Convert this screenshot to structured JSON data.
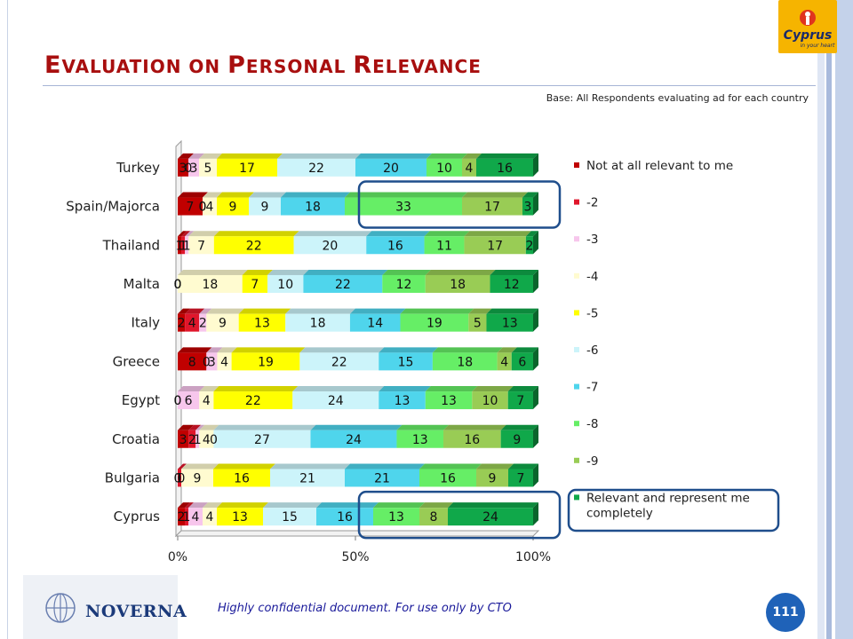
{
  "slide": {
    "title_initial1": "E",
    "title_rest1": "VALUATION ON ",
    "title_initial2": "P",
    "title_rest2": "ERSONAL ",
    "title_initial3": "R",
    "title_rest3": "ELEVANCE",
    "base_note": "Base: All Respondents evaluating ad for each country",
    "footer_note": "Highly confidential document. For use only by CTO",
    "page_number": "111",
    "logo_text": "Cyprus",
    "logo_tagline": "in your heart",
    "company_name": "NOVERNA"
  },
  "chart_data": {
    "type": "bar",
    "orientation": "horizontal",
    "stacked": "100%",
    "categories": [
      "Turkey",
      "Spain/Majorca",
      "Thailand",
      "Malta",
      "Italy",
      "Greece",
      "Egypt",
      "Croatia",
      "Bulgaria",
      "Cyprus"
    ],
    "x_ticks": [
      "0%",
      "50%",
      "100%"
    ],
    "xlim": [
      0,
      100
    ],
    "legend_position": "right",
    "highlighted_categories": [
      "Spain/Majorca",
      "Cyprus"
    ],
    "highlighted_series": [
      "-8",
      "-9",
      "Relevant and represent me completely"
    ],
    "series": [
      {
        "name": "Not at all relevant to me",
        "color": "#c00000",
        "values": [
          3,
          7,
          1,
          0,
          2,
          8,
          0,
          3,
          0,
          2
        ]
      },
      {
        "name": "-2",
        "color": "#e0162b",
        "values": [
          0,
          0,
          1,
          0,
          4,
          0,
          0,
          2,
          1,
          1
        ]
      },
      {
        "name": "-3",
        "color": "#f7c6ec",
        "values": [
          3,
          0,
          1,
          0,
          2,
          3,
          6,
          1,
          0,
          4
        ]
      },
      {
        "name": "-4",
        "color": "#fffbd0",
        "values": [
          5,
          4,
          7,
          18,
          9,
          4,
          4,
          4,
          9,
          4
        ]
      },
      {
        "name": "-5",
        "color": "#ffff00",
        "values": [
          17,
          9,
          22,
          7,
          13,
          19,
          22,
          0,
          16,
          13
        ]
      },
      {
        "name": "-6",
        "color": "#ccf4fa",
        "values": [
          22,
          9,
          20,
          10,
          18,
          22,
          24,
          27,
          21,
          15
        ]
      },
      {
        "name": "-7",
        "color": "#4fd5ec",
        "values": [
          20,
          18,
          16,
          22,
          14,
          15,
          13,
          24,
          21,
          16
        ]
      },
      {
        "name": "-8",
        "color": "#66ee66",
        "values": [
          10,
          33,
          11,
          12,
          19,
          18,
          13,
          13,
          16,
          13
        ]
      },
      {
        "name": "-9",
        "color": "#99cc55",
        "values": [
          4,
          17,
          17,
          18,
          5,
          4,
          10,
          16,
          9,
          8
        ]
      },
      {
        "name": "Relevant and represent me completely",
        "color": "#10a84a",
        "values": [
          16,
          3,
          2,
          12,
          13,
          6,
          7,
          9,
          7,
          24
        ]
      }
    ]
  }
}
